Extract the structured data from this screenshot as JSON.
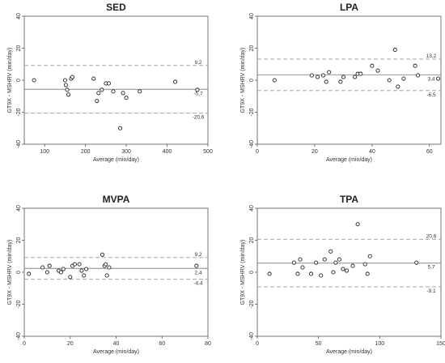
{
  "chart_data": [
    {
      "type": "scatter",
      "title": "SED",
      "xlabel": "Average (min/day)",
      "ylabel": "GT9X - MSHRV (min/day)",
      "xlim": [
        50,
        500
      ],
      "ylim": [
        -40,
        40
      ],
      "xticks": [
        "100",
        "200",
        "300",
        "400",
        "500"
      ],
      "yticks": [
        "-40",
        "-20",
        "0",
        "20",
        "40"
      ],
      "reference_lines": {
        "mean": {
          "value": -5.7,
          "label": "-5,7"
        },
        "upper": {
          "value": 9.2,
          "label": "9,2"
        },
        "lower": {
          "value": -20.6,
          "label": "-20,6"
        }
      },
      "points": [
        {
          "x": 74,
          "y": 0
        },
        {
          "x": 150,
          "y": 0
        },
        {
          "x": 152,
          "y": -3
        },
        {
          "x": 155,
          "y": -6
        },
        {
          "x": 158,
          "y": -9
        },
        {
          "x": 165,
          "y": 1
        },
        {
          "x": 168,
          "y": 2
        },
        {
          "x": 220,
          "y": 1
        },
        {
          "x": 228,
          "y": -13
        },
        {
          "x": 232,
          "y": -8
        },
        {
          "x": 240,
          "y": -6
        },
        {
          "x": 250,
          "y": -2
        },
        {
          "x": 257,
          "y": -2
        },
        {
          "x": 268,
          "y": -7
        },
        {
          "x": 285,
          "y": -30
        },
        {
          "x": 292,
          "y": -8
        },
        {
          "x": 300,
          "y": -11
        },
        {
          "x": 333,
          "y": -7
        },
        {
          "x": 420,
          "y": -1
        },
        {
          "x": 474,
          "y": -6
        }
      ]
    },
    {
      "type": "scatter",
      "title": "LPA",
      "xlabel": "Average (min/day)",
      "ylabel": "GT9X - MSHRV (min/day)",
      "xlim": [
        0,
        64
      ],
      "ylim": [
        -40,
        40
      ],
      "xticks": [
        "0",
        "20",
        "40",
        "60"
      ],
      "yticks": [
        "-40",
        "-20",
        "0",
        "20",
        "40"
      ],
      "reference_lines": {
        "mean": {
          "value": 3.4,
          "label": "3,4"
        },
        "upper": {
          "value": 13.2,
          "label": "13,2"
        },
        "lower": {
          "value": -6.5,
          "label": "-6,5"
        }
      },
      "points": [
        {
          "x": 6,
          "y": 0
        },
        {
          "x": 19,
          "y": 3
        },
        {
          "x": 21,
          "y": 2
        },
        {
          "x": 23,
          "y": 3
        },
        {
          "x": 24,
          "y": -1
        },
        {
          "x": 25,
          "y": 5
        },
        {
          "x": 29,
          "y": -1
        },
        {
          "x": 30,
          "y": 2
        },
        {
          "x": 34,
          "y": 2
        },
        {
          "x": 35,
          "y": 4
        },
        {
          "x": 36,
          "y": 4
        },
        {
          "x": 40,
          "y": 9
        },
        {
          "x": 42,
          "y": 6
        },
        {
          "x": 46,
          "y": 0
        },
        {
          "x": 48,
          "y": 19
        },
        {
          "x": 49,
          "y": -4
        },
        {
          "x": 51,
          "y": 1
        },
        {
          "x": 55,
          "y": 9
        },
        {
          "x": 56,
          "y": 3
        },
        {
          "x": 63,
          "y": 1
        }
      ]
    },
    {
      "type": "scatter",
      "title": "MVPA",
      "xlabel": "Average (min/day)",
      "ylabel": "GT9X - MSHRV (min/day)",
      "xlim": [
        0,
        80
      ],
      "ylim": [
        -40,
        40
      ],
      "xticks": [
        "0",
        "20",
        "40",
        "60",
        "80"
      ],
      "yticks": [
        "-40",
        "-20",
        "0",
        "20",
        "40"
      ],
      "reference_lines": {
        "mean": {
          "value": 2.4,
          "label": "2,4"
        },
        "upper": {
          "value": 9.2,
          "label": "9,2"
        },
        "lower": {
          "value": -4.4,
          "label": "-4,4"
        }
      },
      "points": [
        {
          "x": 2,
          "y": -1
        },
        {
          "x": 8,
          "y": 3
        },
        {
          "x": 10,
          "y": 0
        },
        {
          "x": 11,
          "y": 4
        },
        {
          "x": 15,
          "y": 1
        },
        {
          "x": 16,
          "y": 0
        },
        {
          "x": 17,
          "y": 2
        },
        {
          "x": 20,
          "y": -3
        },
        {
          "x": 21,
          "y": 4
        },
        {
          "x": 22,
          "y": 5
        },
        {
          "x": 24,
          "y": 5
        },
        {
          "x": 25,
          "y": 1
        },
        {
          "x": 26,
          "y": -2
        },
        {
          "x": 27,
          "y": 2
        },
        {
          "x": 34,
          "y": 11
        },
        {
          "x": 35,
          "y": 4
        },
        {
          "x": 35.5,
          "y": 5
        },
        {
          "x": 36,
          "y": -2
        },
        {
          "x": 37,
          "y": 3
        },
        {
          "x": 75,
          "y": 4
        }
      ]
    },
    {
      "type": "scatter",
      "title": "TPA",
      "xlabel": "Average (min/day)",
      "ylabel": "GT9X - MSHRV (min/day)",
      "xlim": [
        0,
        150
      ],
      "ylim": [
        -40,
        40
      ],
      "xticks": [
        "0",
        "50",
        "100",
        "150"
      ],
      "yticks": [
        "-40",
        "-20",
        "0",
        "20",
        "40"
      ],
      "reference_lines": {
        "mean": {
          "value": 5.7,
          "label": "5,7"
        },
        "upper": {
          "value": 20.6,
          "label": "20,6"
        },
        "lower": {
          "value": -9.1,
          "label": "-9,1"
        }
      },
      "points": [
        {
          "x": 10,
          "y": -1
        },
        {
          "x": 30,
          "y": 6
        },
        {
          "x": 33,
          "y": -1
        },
        {
          "x": 35,
          "y": 8
        },
        {
          "x": 37,
          "y": 3
        },
        {
          "x": 44,
          "y": -1
        },
        {
          "x": 48,
          "y": 6
        },
        {
          "x": 52,
          "y": -2
        },
        {
          "x": 55,
          "y": 8
        },
        {
          "x": 60,
          "y": 13
        },
        {
          "x": 62,
          "y": 0
        },
        {
          "x": 64,
          "y": 6
        },
        {
          "x": 67,
          "y": 8
        },
        {
          "x": 70,
          "y": 2
        },
        {
          "x": 73,
          "y": 1
        },
        {
          "x": 78,
          "y": 4
        },
        {
          "x": 82,
          "y": 30
        },
        {
          "x": 88,
          "y": 5
        },
        {
          "x": 90,
          "y": -1
        },
        {
          "x": 92,
          "y": 10
        },
        {
          "x": 130,
          "y": 6
        }
      ]
    }
  ]
}
